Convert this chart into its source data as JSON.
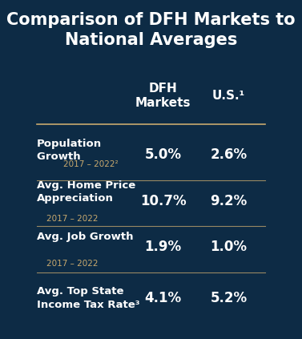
{
  "title": "Comparison of DFH Markets to\nNational Averages",
  "title_fontsize": 15,
  "bg_color": "#0d2b45",
  "text_color": "#ffffff",
  "gold_color": "#c8a96e",
  "col_headers": [
    "DFH\nMarkets",
    "U.S.¹"
  ],
  "rows": [
    {
      "label_bold": "Population\nGrowth ",
      "label_small": "2017 – 2022²",
      "label_small_on_new_line": false,
      "dfh_value": "5.0%",
      "us_value": "2.6%"
    },
    {
      "label_bold": "Avg. Home Price\nAppreciation",
      "label_small": "2017 – 2022",
      "label_small_on_new_line": true,
      "dfh_value": "10.7%",
      "us_value": "9.2%"
    },
    {
      "label_bold": "Avg. Job Growth",
      "label_small": "2017 – 2022",
      "label_small_on_new_line": true,
      "dfh_value": "1.9%",
      "us_value": "1.0%"
    },
    {
      "label_bold": "Avg. Top State\nIncome Tax Rate³",
      "label_small": "",
      "label_small_on_new_line": false,
      "dfh_value": "4.1%",
      "us_value": "5.2%"
    }
  ],
  "figsize": [
    3.77,
    4.23
  ],
  "dpi": 100
}
